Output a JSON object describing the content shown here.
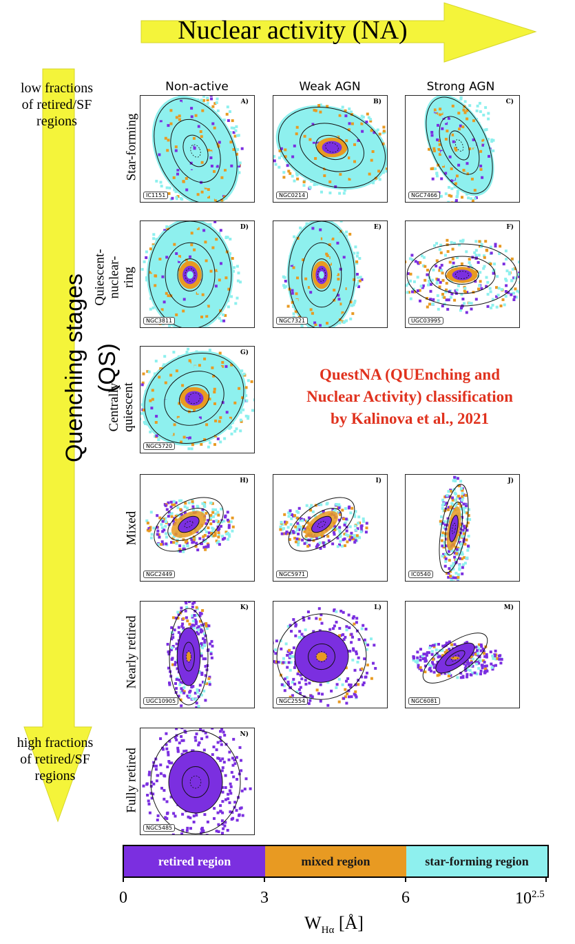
{
  "titles": {
    "na": "Nuclear activity (NA)",
    "qs": "Quenching stages (QS)"
  },
  "notes": {
    "low": [
      "low fractions",
      "of retired/SF",
      "regions"
    ],
    "high": [
      "high fractions",
      "of retired/SF",
      "regions"
    ]
  },
  "columns": [
    "Non-active",
    "Weak AGN",
    "Strong AGN"
  ],
  "rows": [
    "Star-forming",
    "Quiescent-\nnuclear-\nring",
    "Centrally\nquiescent",
    "Mixed",
    "Nearly retired",
    "Fully retired"
  ],
  "panels": [
    {
      "letter": "A)",
      "galaxy": "IC1151"
    },
    {
      "letter": "B)",
      "galaxy": "NGC0214"
    },
    {
      "letter": "C)",
      "galaxy": "NGC7466"
    },
    {
      "letter": "D)",
      "galaxy": "NGC3811"
    },
    {
      "letter": "E)",
      "galaxy": "NGC7321"
    },
    {
      "letter": "F)",
      "galaxy": "UGC03995"
    },
    {
      "letter": "G)",
      "galaxy": "NGC5720"
    },
    {
      "letter": "H)",
      "galaxy": "NGC2449"
    },
    {
      "letter": "I)",
      "galaxy": "NGC5971"
    },
    {
      "letter": "J)",
      "galaxy": "IC0540"
    },
    {
      "letter": "K)",
      "galaxy": "UGC10905"
    },
    {
      "letter": "L)",
      "galaxy": "NGC2554"
    },
    {
      "letter": "M)",
      "galaxy": "NGC6081"
    },
    {
      "letter": "N)",
      "galaxy": "NGC5485"
    }
  ],
  "classification": [
    "QuestNA (QUEnching and",
    "Nuclear Activity) classification",
    "by Kalinova et al., 2021"
  ],
  "colorbar": {
    "segments": [
      {
        "label": "retired region",
        "color": "#7b2fe0",
        "text_color": "#ffffff",
        "from": 0,
        "to": 3
      },
      {
        "label": "mixed region",
        "color": "#e89a22",
        "text_color": "#1a1a1a",
        "from": 3,
        "to": 6
      },
      {
        "label": "star-forming region",
        "color": "#8ef0ee",
        "text_color": "#1a1a1a",
        "from": 6,
        "to": 10
      }
    ],
    "ticks": [
      "0",
      "3",
      "6",
      "10"
    ],
    "tick_sup": "2.5",
    "xlabel_main": "W",
    "xlabel_sub": "Hα",
    "xlabel_unit": " [Å]"
  },
  "colors": {
    "arrow": "#f4f43a",
    "arrow_edge": "#d6d62a",
    "retired": "#7b2fe0",
    "mixed": "#e89a22",
    "sf": "#8ef0ee",
    "accent": "#e0321e"
  }
}
